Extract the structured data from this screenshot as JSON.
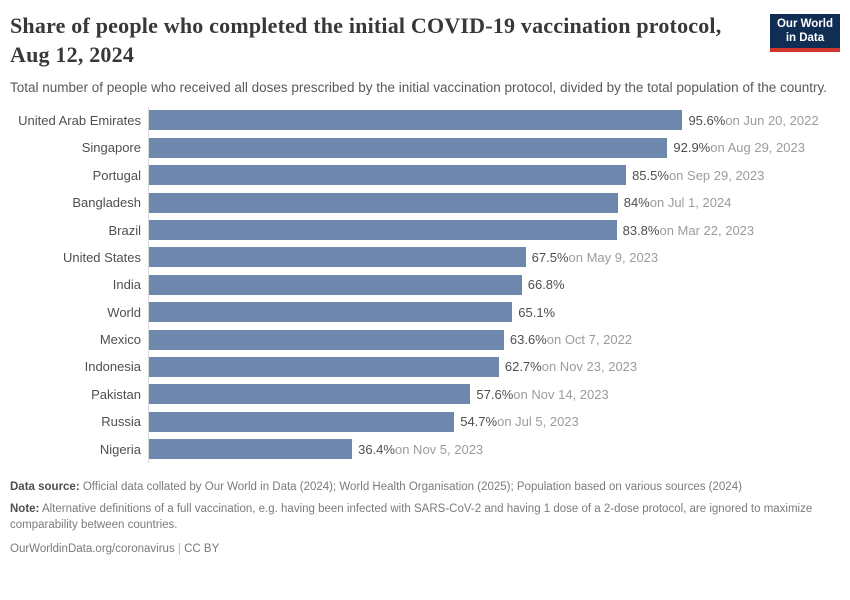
{
  "header": {
    "title": "Share of people who completed the initial COVID-19 vaccination protocol, Aug 12, 2024",
    "subtitle": "Total number of people who received all doses prescribed by the initial vaccination protocol, divided by the total population of the country.",
    "logo": {
      "line1": "Our World",
      "line2": "in Data",
      "bg_color": "#102e54",
      "accent_color": "#d0342c"
    }
  },
  "chart_data": {
    "type": "bar",
    "orientation": "horizontal",
    "unit": "%",
    "xlim": [
      0,
      100
    ],
    "grid": false,
    "bar_color": "#6e87ad",
    "axis_line_color": "#d9d9d9",
    "categories": [
      "United Arab Emirates",
      "Singapore",
      "Portugal",
      "Bangladesh",
      "Brazil",
      "United States",
      "India",
      "World",
      "Mexico",
      "Indonesia",
      "Pakistan",
      "Russia",
      "Nigeria"
    ],
    "values": [
      95.6,
      92.9,
      85.5,
      84,
      83.8,
      67.5,
      66.8,
      65.1,
      63.6,
      62.7,
      57.6,
      54.7,
      36.4
    ],
    "rows": [
      {
        "label": "United Arab Emirates",
        "value": 95.6,
        "value_label": "95.6%",
        "date_label": "on Jun 20, 2022"
      },
      {
        "label": "Singapore",
        "value": 92.9,
        "value_label": "92.9%",
        "date_label": "on Aug 29, 2023"
      },
      {
        "label": "Portugal",
        "value": 85.5,
        "value_label": "85.5%",
        "date_label": "on Sep 29, 2023"
      },
      {
        "label": "Bangladesh",
        "value": 84,
        "value_label": "84%",
        "date_label": "on Jul 1, 2024"
      },
      {
        "label": "Brazil",
        "value": 83.8,
        "value_label": "83.8%",
        "date_label": "on Mar 22, 2023"
      },
      {
        "label": "United States",
        "value": 67.5,
        "value_label": "67.5%",
        "date_label": "on May 9, 2023"
      },
      {
        "label": "India",
        "value": 66.8,
        "value_label": "66.8%",
        "date_label": ""
      },
      {
        "label": "World",
        "value": 65.1,
        "value_label": "65.1%",
        "date_label": ""
      },
      {
        "label": "Mexico",
        "value": 63.6,
        "value_label": "63.6%",
        "date_label": "on Oct 7, 2022"
      },
      {
        "label": "Indonesia",
        "value": 62.7,
        "value_label": "62.7%",
        "date_label": "on Nov 23, 2023"
      },
      {
        "label": "Pakistan",
        "value": 57.6,
        "value_label": "57.6%",
        "date_label": "on Nov 14, 2023"
      },
      {
        "label": "Russia",
        "value": 54.7,
        "value_label": "54.7%",
        "date_label": "on Jul 5, 2023"
      },
      {
        "label": "Nigeria",
        "value": 36.4,
        "value_label": "36.4%",
        "date_label": "on Nov 5, 2023"
      }
    ]
  },
  "footer": {
    "data_source_label": "Data source:",
    "data_source_text": " Official data collated by Our World in Data (2024); World Health Organisation (2025); Population based on various sources (2024)",
    "note_label": "Note:",
    "note_text": " Alternative definitions of a full vaccination, e.g. having been infected with SARS-CoV-2 and having 1 dose of a 2-dose protocol, are ignored to maximize comparability between countries.",
    "link": "OurWorldinData.org/coronavirus",
    "separator": "|",
    "license": "CC BY"
  }
}
